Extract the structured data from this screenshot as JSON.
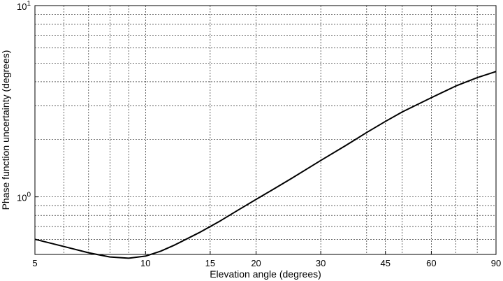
{
  "chart_data": {
    "type": "line",
    "title": "",
    "xlabel": "Elevation angle (degrees)",
    "ylabel": "Phase function uncertainty (degrees)",
    "x_scale": "log",
    "y_scale": "log",
    "xlim": [
      5,
      90
    ],
    "ylim": [
      0.5,
      10
    ],
    "grid": true,
    "grid_style": "dashed",
    "x_ticks": [
      5,
      10,
      15,
      20,
      30,
      45,
      60,
      90
    ],
    "x_tick_labels": [
      "5",
      "10",
      "15",
      "20",
      "30",
      "45",
      "60",
      "90"
    ],
    "y_major_ticks": [
      1,
      10
    ],
    "y_tick_labels": [
      {
        "base": "10",
        "exp": "0"
      },
      {
        "base": "10",
        "exp": "1"
      }
    ],
    "series": [
      {
        "color": "#000000",
        "x": [
          5,
          6,
          7,
          8,
          9,
          10,
          11,
          12,
          14,
          16,
          18,
          20,
          22,
          25,
          30,
          35,
          40,
          45,
          50,
          60,
          70,
          80,
          90
        ],
        "y": [
          0.6,
          0.55,
          0.51,
          0.485,
          0.478,
          0.49,
          0.52,
          0.56,
          0.65,
          0.75,
          0.86,
          0.97,
          1.08,
          1.25,
          1.55,
          1.85,
          2.17,
          2.48,
          2.78,
          3.3,
          3.8,
          4.2,
          4.52
        ]
      }
    ]
  }
}
